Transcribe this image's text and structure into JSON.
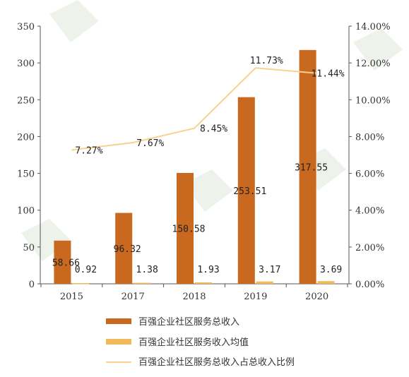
{
  "chart_data": {
    "type": "bar",
    "categories": [
      "2015",
      "2017",
      "2018",
      "2019",
      "2020"
    ],
    "series": [
      {
        "name": "百强企业社区服务总收入",
        "type": "bar",
        "axis": "left",
        "color": "#C8691F",
        "values": [
          58.66,
          96.32,
          150.58,
          253.51,
          317.55
        ],
        "labels": [
          "58.66",
          "96.32",
          "150.58",
          "253.51",
          "317.55"
        ]
      },
      {
        "name": "百强企业社区服务收入均值",
        "type": "bar",
        "axis": "left",
        "color": "#F2B85A",
        "values": [
          0.92,
          1.38,
          1.93,
          3.17,
          3.69
        ],
        "labels": [
          "0.92",
          "1.38",
          "1.93",
          "3.17",
          "3.69"
        ]
      },
      {
        "name": "百强企业社区服务总收入占总收入比例",
        "type": "line",
        "axis": "right",
        "color": "#F7D18F",
        "values": [
          7.27,
          7.67,
          8.45,
          11.73,
          11.44
        ],
        "labels": [
          "7.27%",
          "7.67%",
          "8.45%",
          "11.73%",
          "11.44%"
        ]
      }
    ],
    "y_left": {
      "min": 0,
      "max": 350,
      "ticks": [
        "0",
        "50",
        "100",
        "150",
        "200",
        "250",
        "300",
        "350"
      ]
    },
    "y_right": {
      "min": 0,
      "max": 14,
      "ticks": [
        "0.00%",
        "2.00%",
        "4.00%",
        "6.00%",
        "8.00%",
        "10.00%",
        "12.00%",
        "14.00%"
      ]
    },
    "grid": false,
    "legend_position": "bottom"
  }
}
